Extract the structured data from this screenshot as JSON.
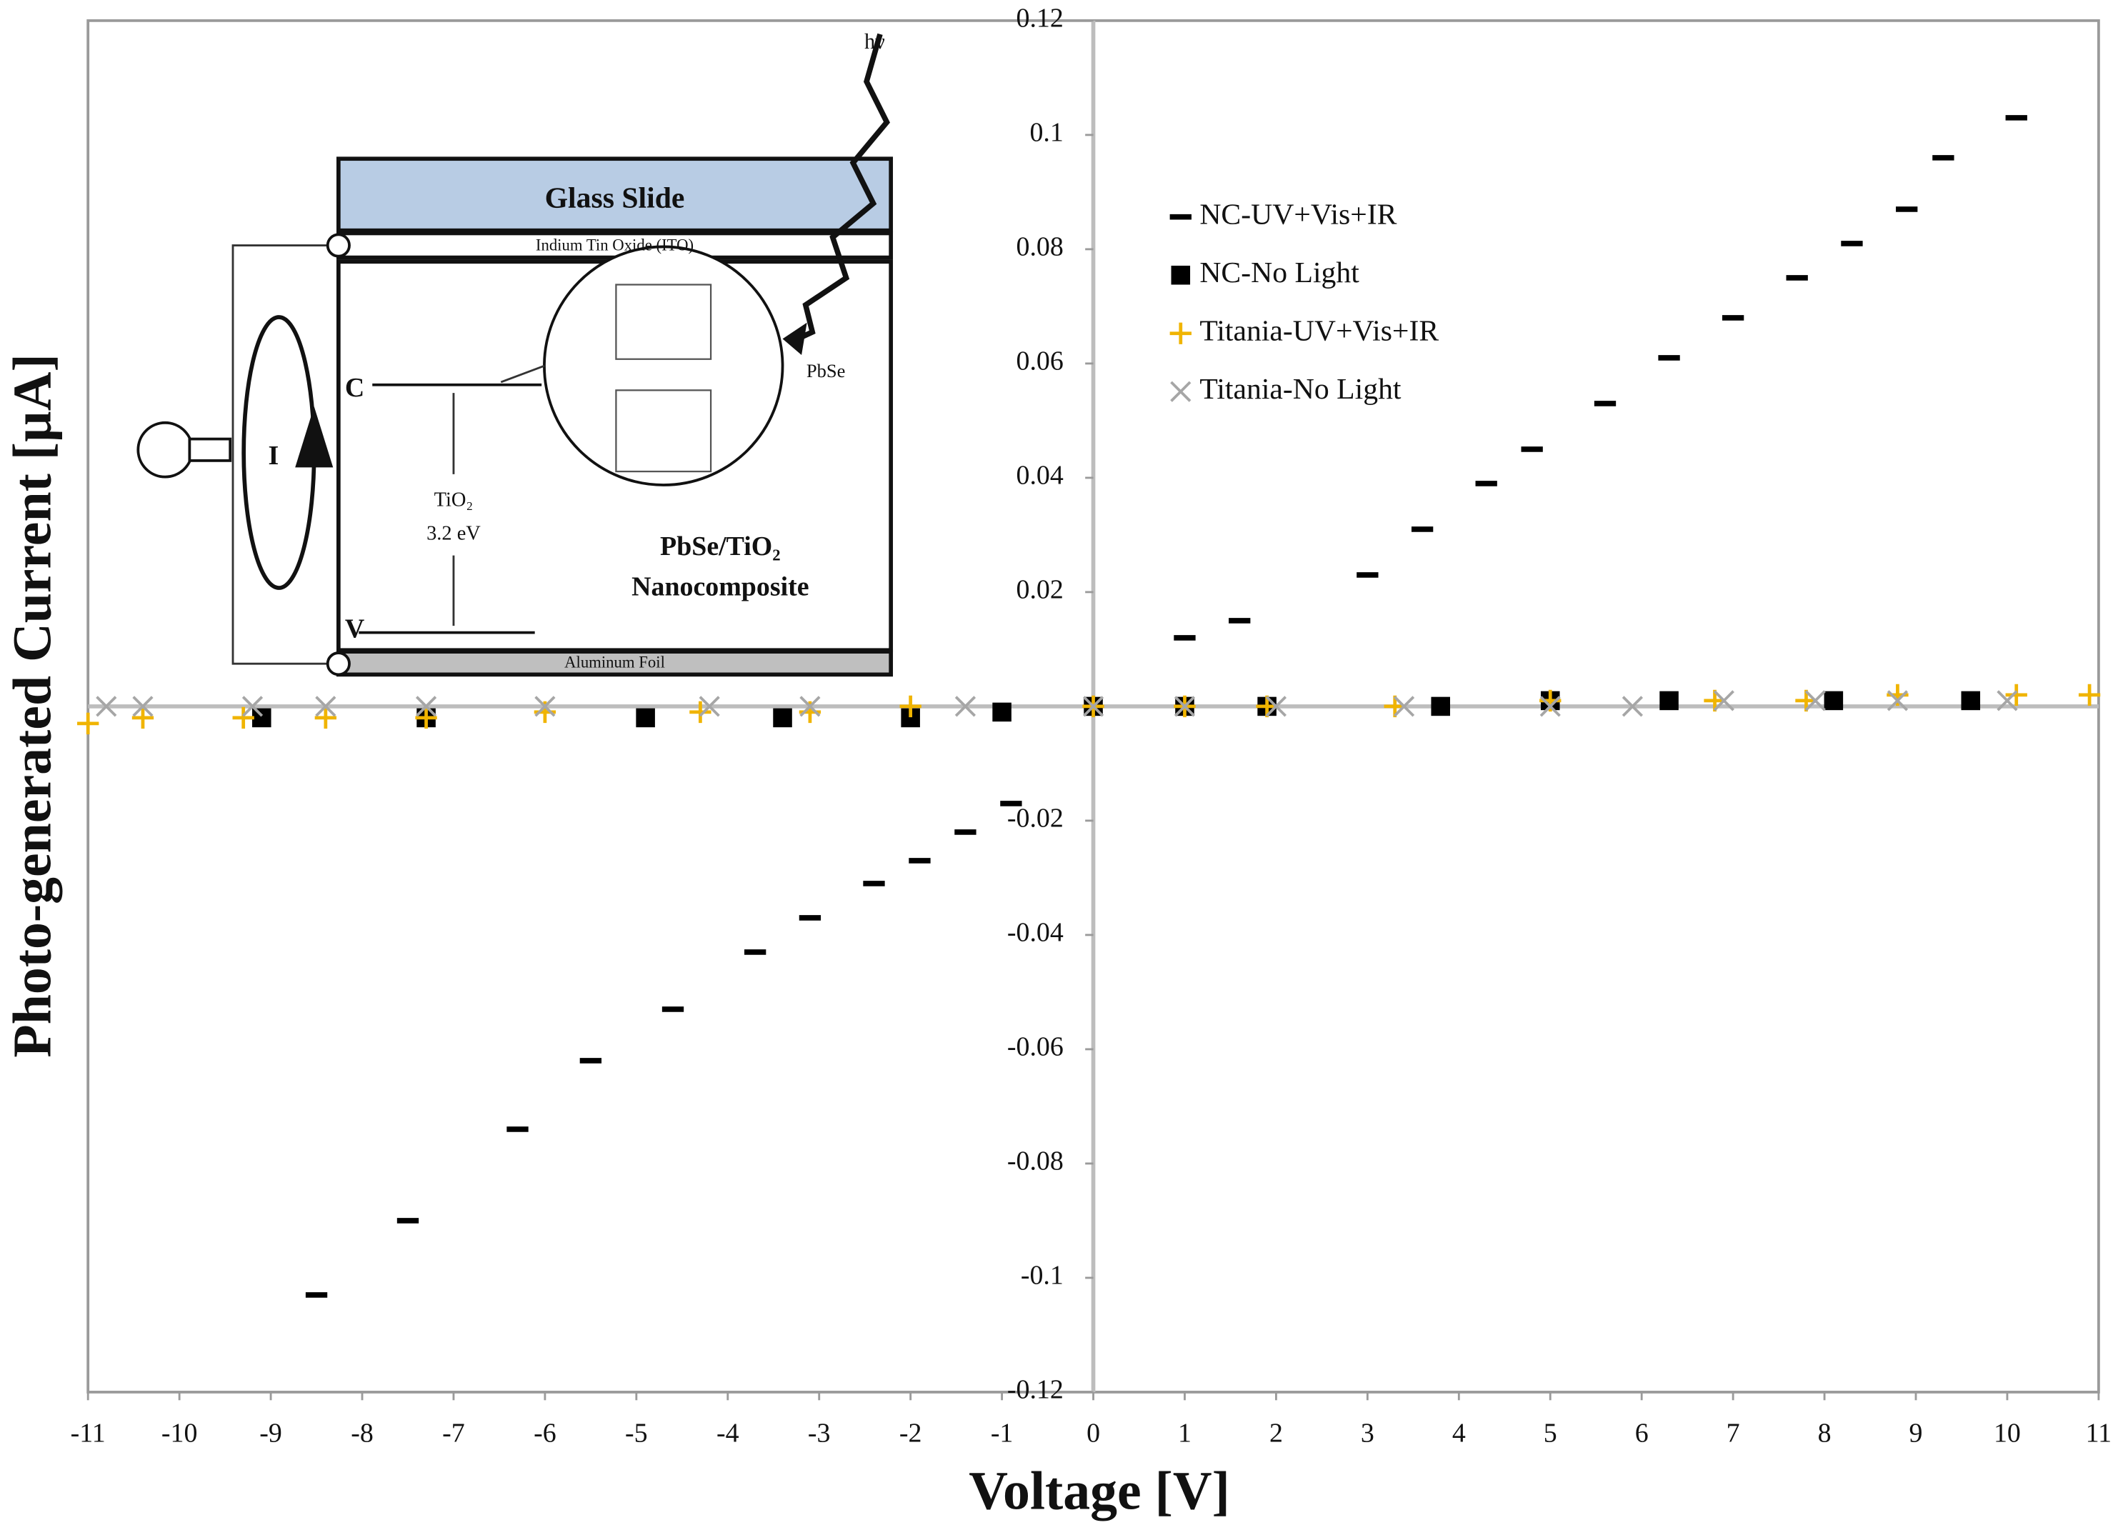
{
  "chart_data": {
    "type": "scatter",
    "xlabel": "Voltage [V]",
    "ylabel": "Photo-generated Current [µA]",
    "xlim": [
      -11,
      11
    ],
    "ylim": [
      -0.12,
      0.12
    ],
    "xticks": [
      -11,
      -10,
      -9,
      -8,
      -7,
      -6,
      -5,
      -4,
      -3,
      -2,
      -1,
      0,
      1,
      2,
      3,
      4,
      5,
      6,
      7,
      8,
      9,
      10,
      11
    ],
    "yticks": [
      -0.12,
      -0.1,
      -0.08,
      -0.06,
      -0.04,
      -0.02,
      0.02,
      0.04,
      0.06,
      0.08,
      0.1,
      0.12
    ],
    "grid": false,
    "legend": "upper right",
    "series": [
      {
        "name": "NC-UV+Vis+IR",
        "color": "#000000",
        "marker": "dash",
        "x": [
          -8.5,
          -7.5,
          -6.3,
          -5.5,
          -4.6,
          -3.7,
          -3.1,
          -2.4,
          -1.9,
          -1.4,
          -0.9,
          1.0,
          1.6,
          3.0,
          3.6,
          4.3,
          4.8,
          5.6,
          6.3,
          7.0,
          7.7,
          8.3,
          8.9,
          9.3,
          10.1
        ],
        "values": [
          -0.103,
          -0.09,
          -0.074,
          -0.062,
          -0.053,
          -0.043,
          -0.037,
          -0.031,
          -0.027,
          -0.022,
          -0.017,
          0.012,
          0.015,
          0.023,
          0.031,
          0.039,
          0.045,
          0.053,
          0.061,
          0.068,
          0.075,
          0.081,
          0.087,
          0.096,
          0.103
        ]
      },
      {
        "name": "NC-No Light",
        "color": "#000000",
        "marker": "square",
        "x": [
          -9.1,
          -7.3,
          -4.9,
          -3.4,
          -2.0,
          -1.0,
          0,
          1.0,
          1.9,
          3.8,
          5.0,
          6.3,
          8.1,
          9.6
        ],
        "values": [
          -0.002,
          -0.002,
          -0.002,
          -0.002,
          -0.002,
          -0.001,
          0,
          0,
          0,
          0,
          0.001,
          0.001,
          0.001,
          0.001
        ]
      },
      {
        "name": "Titania-UV+Vis+IR",
        "color": "#f0b400",
        "marker": "plus",
        "x": [
          -11,
          -10.4,
          -9.3,
          -8.4,
          -7.3,
          -6,
          -4.3,
          -3.1,
          -2,
          0,
          1,
          1.9,
          3.3,
          5,
          6.8,
          7.8,
          8.8,
          10.1,
          10.9
        ],
        "values": [
          -0.003,
          -0.002,
          -0.002,
          -0.002,
          -0.002,
          -0.001,
          -0.001,
          -0.001,
          0,
          0,
          0,
          0,
          0,
          0.001,
          0.001,
          0.001,
          0.002,
          0.002,
          0.002
        ]
      },
      {
        "name": "Titania-No Light",
        "color": "#a6a6a6",
        "marker": "x",
        "x": [
          -10.8,
          -10.4,
          -9.2,
          -8.4,
          -7.3,
          -6,
          -4.2,
          -3.1,
          -1.4,
          0,
          1,
          2,
          3.4,
          5,
          5.9,
          6.9,
          7.9,
          8.8,
          10
        ],
        "values": [
          0,
          0,
          0,
          0,
          0,
          0,
          0,
          0,
          0,
          0,
          0,
          0,
          0,
          0,
          0,
          0.001,
          0.001,
          0.001,
          0.001
        ]
      }
    ]
  },
  "inset": {
    "glass": "Glass Slide",
    "ito": "Indium Tin Oxide (ITO)",
    "foil": "Aluminum Foil",
    "conduction": "C",
    "valence": "V",
    "current": "I",
    "oxide": "TiO₂",
    "gap": "3.2 eV",
    "dot": "PbSe",
    "composite_1": "PbSe/TiO₂",
    "composite_2": "Nanocomposite",
    "light": "hν"
  }
}
